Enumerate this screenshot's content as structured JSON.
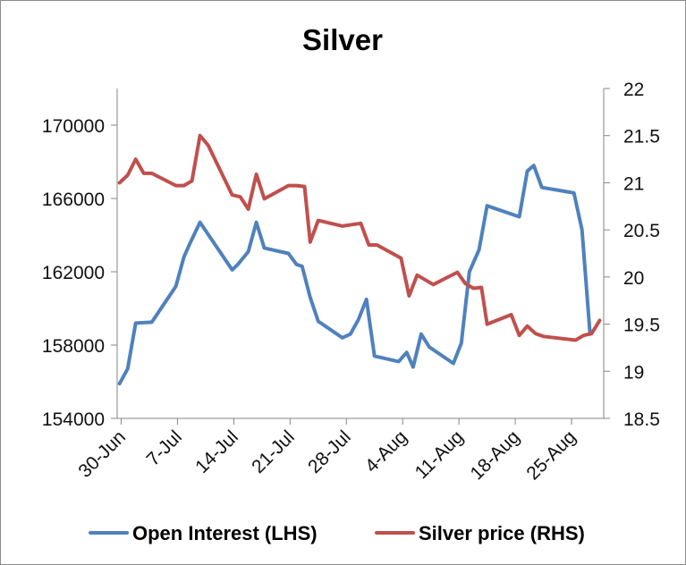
{
  "chart_data": {
    "type": "line",
    "title": "Silver",
    "x_tick_labels": [
      "30-Jun",
      "7-Jul",
      "14-Jul",
      "21-Jul",
      "28-Jul",
      "4-Aug",
      "11-Aug",
      "18-Aug",
      "25-Aug"
    ],
    "x_tick_days": [
      0,
      7,
      14,
      21,
      28,
      35,
      42,
      49,
      56
    ],
    "y_left": {
      "ylim": [
        154000,
        172000
      ],
      "ticks": [
        154000,
        158000,
        162000,
        166000,
        170000
      ],
      "tick_labels": [
        "154000",
        "158000",
        "162000",
        "166000",
        "170000"
      ]
    },
    "y_right": {
      "ylim": [
        18.5,
        22
      ],
      "ticks": [
        18.5,
        19,
        19.5,
        20,
        20.5,
        21,
        21.5,
        22
      ],
      "tick_labels": [
        "18.5",
        "19",
        "19.5",
        "20",
        "20.5",
        "21",
        "21.5",
        "22"
      ]
    },
    "legend_position": "bottom",
    "series": [
      {
        "name": "Open Interest (LHS)",
        "axis": "left",
        "color": "#4f81bd",
        "points": [
          [
            -0.2,
            155900
          ],
          [
            0.8,
            156700
          ],
          [
            1.8,
            159200
          ],
          [
            3.8,
            159250
          ],
          [
            6.8,
            161200
          ],
          [
            7.8,
            162800
          ],
          [
            8.5,
            163500
          ],
          [
            9.8,
            164700
          ],
          [
            13.8,
            162100
          ],
          [
            14.5,
            162400
          ],
          [
            15.8,
            163100
          ],
          [
            16.8,
            164700
          ],
          [
            17.8,
            163300
          ],
          [
            20.8,
            163000
          ],
          [
            21.8,
            162400
          ],
          [
            22.5,
            162300
          ],
          [
            23.5,
            160600
          ],
          [
            24.5,
            159300
          ],
          [
            27.5,
            158400
          ],
          [
            28.5,
            158600
          ],
          [
            29.5,
            159400
          ],
          [
            30.5,
            160500
          ],
          [
            31.5,
            157400
          ],
          [
            34.5,
            157100
          ],
          [
            35.5,
            157600
          ],
          [
            36.3,
            156800
          ],
          [
            37.3,
            158600
          ],
          [
            38.3,
            157900
          ],
          [
            41.3,
            157000
          ],
          [
            42.3,
            158100
          ],
          [
            43.3,
            162000
          ],
          [
            44.5,
            163200
          ],
          [
            45.5,
            165600
          ],
          [
            49.5,
            165000
          ],
          [
            50.5,
            167500
          ],
          [
            51.3,
            167800
          ],
          [
            52.3,
            166600
          ],
          [
            56.3,
            166300
          ],
          [
            57.3,
            164300
          ],
          [
            58.3,
            158600
          ]
        ]
      },
      {
        "name": "Silver price (RHS)",
        "axis": "right",
        "color": "#c0504d",
        "points": [
          [
            -0.2,
            21.0
          ],
          [
            0.8,
            21.08
          ],
          [
            1.8,
            21.25
          ],
          [
            2.8,
            21.1
          ],
          [
            3.8,
            21.1
          ],
          [
            6.8,
            20.97
          ],
          [
            7.8,
            20.97
          ],
          [
            8.8,
            21.02
          ],
          [
            9.8,
            21.5
          ],
          [
            10.8,
            21.4
          ],
          [
            13.8,
            20.87
          ],
          [
            14.8,
            20.85
          ],
          [
            15.8,
            20.72
          ],
          [
            16.8,
            21.09
          ],
          [
            17.8,
            20.83
          ],
          [
            20.8,
            20.97
          ],
          [
            21.8,
            20.97
          ],
          [
            22.8,
            20.96
          ],
          [
            23.5,
            20.37
          ],
          [
            24.5,
            20.6
          ],
          [
            27.5,
            20.54
          ],
          [
            29.8,
            20.57
          ],
          [
            30.8,
            20.34
          ],
          [
            31.8,
            20.34
          ],
          [
            34.8,
            20.2
          ],
          [
            35.8,
            19.8
          ],
          [
            36.8,
            20.02
          ],
          [
            38.8,
            19.92
          ],
          [
            41.8,
            20.05
          ],
          [
            42.8,
            19.93
          ],
          [
            43.8,
            19.88
          ],
          [
            44.8,
            19.89
          ],
          [
            45.5,
            19.5
          ],
          [
            48.5,
            19.6
          ],
          [
            49.5,
            19.38
          ],
          [
            50.5,
            19.48
          ],
          [
            51.5,
            19.4
          ],
          [
            52.5,
            19.37
          ],
          [
            56.5,
            19.33
          ],
          [
            57.5,
            19.38
          ],
          [
            58.5,
            19.4
          ],
          [
            59.5,
            19.54
          ]
        ]
      }
    ]
  }
}
